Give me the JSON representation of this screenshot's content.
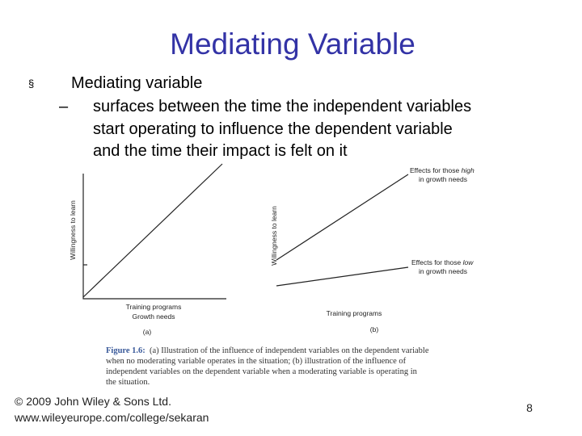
{
  "header": {
    "title": "Mediating Variable"
  },
  "bullets": [
    {
      "marker": "§",
      "text": "Mediating variable",
      "sub": [
        {
          "marker": "–",
          "lines": [
            "surfaces between the time the independent variables",
            "start operating to influence the dependent variable",
            "and the time their impact is felt on it"
          ]
        }
      ]
    }
  ],
  "figure": {
    "panel_a": {
      "y_label": "Willingness to learn",
      "x_labels": [
        "Training programs",
        "Growth needs"
      ],
      "tag": "(a)"
    },
    "panel_b": {
      "y_label": "Willingness to learn",
      "high": {
        "prefix": "Effects for those",
        "emphasis": "high",
        "line2": "in growth needs"
      },
      "low": {
        "prefix": "Effects for those",
        "emphasis": "low",
        "line2": "in growth needs"
      },
      "x_label": "Training programs",
      "tag": "(b)"
    },
    "caption": {
      "label": "Figure 1.6:",
      "lines": [
        "(a) Illustration of the influence of independent variables on the dependent variable",
        "when no moderating variable operates in the situation; (b) illustration of the influence of",
        "independent variables on the dependent variable when a moderating variable is operating in",
        "the situation."
      ]
    }
  },
  "footer": {
    "copyright": "© 2009 John Wiley & Sons Ltd.",
    "url": "www.wileyeurope.com/college/sekaran",
    "page": "8"
  }
}
